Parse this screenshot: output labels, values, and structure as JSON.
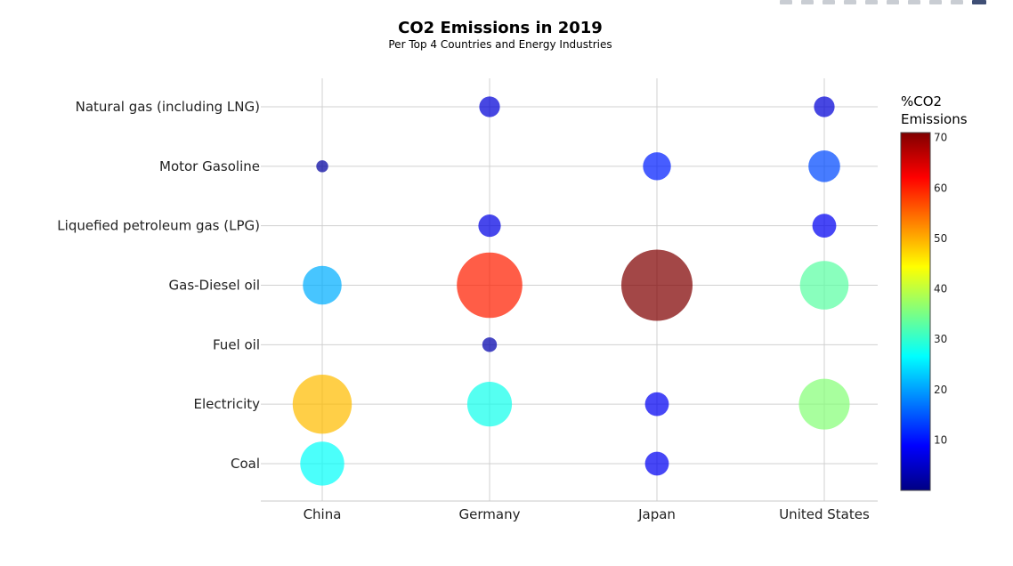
{
  "chart_data": {
    "type": "scatter",
    "title": "CO2 Emissions in 2019",
    "subtitle": "Per Top 4 Countries and Energy Industries",
    "x_categories": [
      "China",
      "Germany",
      "Japan",
      "United States"
    ],
    "y_categories": [
      "Coal",
      "Electricity",
      "Fuel oil",
      "Gas-Diesel oil",
      "Liquefied petroleum gas (LPG)",
      "Motor Gasoline",
      "Natural gas (including LNG)"
    ],
    "colorbar": {
      "title_lines": [
        "%CO2",
        "Emissions"
      ],
      "range": [
        0,
        71
      ],
      "ticks": [
        10,
        20,
        30,
        40,
        50,
        60,
        70
      ],
      "colorscale": "jet"
    },
    "points": [
      {
        "x": "China",
        "y": "Coal",
        "value": 27
      },
      {
        "x": "China",
        "y": "Electricity",
        "value": 49
      },
      {
        "x": "China",
        "y": "Gas-Diesel oil",
        "value": 21
      },
      {
        "x": "China",
        "y": "Motor Gasoline",
        "value": 2
      },
      {
        "x": "Germany",
        "y": "Electricity",
        "value": 28
      },
      {
        "x": "Germany",
        "y": "Fuel oil",
        "value": 3
      },
      {
        "x": "Germany",
        "y": "Gas-Diesel oil",
        "value": 60
      },
      {
        "x": "Germany",
        "y": "Liquefied petroleum gas (LPG)",
        "value": 7
      },
      {
        "x": "Germany",
        "y": "Natural gas (including LNG)",
        "value": 6
      },
      {
        "x": "Japan",
        "y": "Coal",
        "value": 8
      },
      {
        "x": "Japan",
        "y": "Electricity",
        "value": 8
      },
      {
        "x": "Japan",
        "y": "Gas-Diesel oil",
        "value": 71
      },
      {
        "x": "Japan",
        "y": "Motor Gasoline",
        "value": 11
      },
      {
        "x": "United States",
        "y": "Electricity",
        "value": 36
      },
      {
        "x": "United States",
        "y": "Gas-Diesel oil",
        "value": 33
      },
      {
        "x": "United States",
        "y": "Liquefied petroleum gas (LPG)",
        "value": 8
      },
      {
        "x": "United States",
        "y": "Motor Gasoline",
        "value": 14
      },
      {
        "x": "United States",
        "y": "Natural gas (including LNG)",
        "value": 6
      }
    ],
    "grid": true,
    "legend": "colorbar-right"
  }
}
